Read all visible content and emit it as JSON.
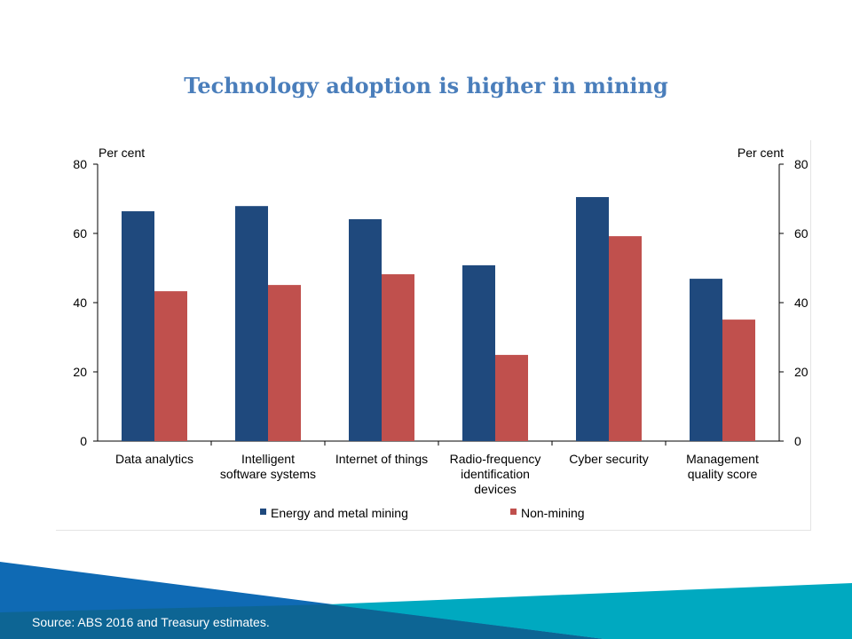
{
  "title": "Technology adoption is higher in mining",
  "source": "Source: ABS 2016 and Treasury estimates.",
  "colors": {
    "mining": "#1f497d",
    "non_mining": "#c0504d",
    "title": "#4a7ebb"
  },
  "chart_data": {
    "type": "bar",
    "title": "Technology adoption is higher in mining",
    "ylabel_left": "Per cent",
    "ylabel_right": "Per cent",
    "ylim": [
      0,
      80
    ],
    "yticks": [
      0,
      20,
      40,
      60,
      80
    ],
    "categories": [
      [
        "Data analytics"
      ],
      [
        "Intelligent",
        "software systems"
      ],
      [
        "Internet of things"
      ],
      [
        "Radio-frequency",
        "identification",
        "devices"
      ],
      [
        "Cyber security"
      ],
      [
        "Management",
        "quality score"
      ]
    ],
    "series": [
      {
        "name": "Energy and metal mining",
        "values": [
          66.4,
          67.9,
          64.1,
          50.8,
          70.5,
          46.9
        ]
      },
      {
        "name": "Non-mining",
        "values": [
          43.3,
          45.1,
          48.2,
          24.9,
          59.2,
          35.1
        ]
      }
    ],
    "legend": "bottom"
  }
}
